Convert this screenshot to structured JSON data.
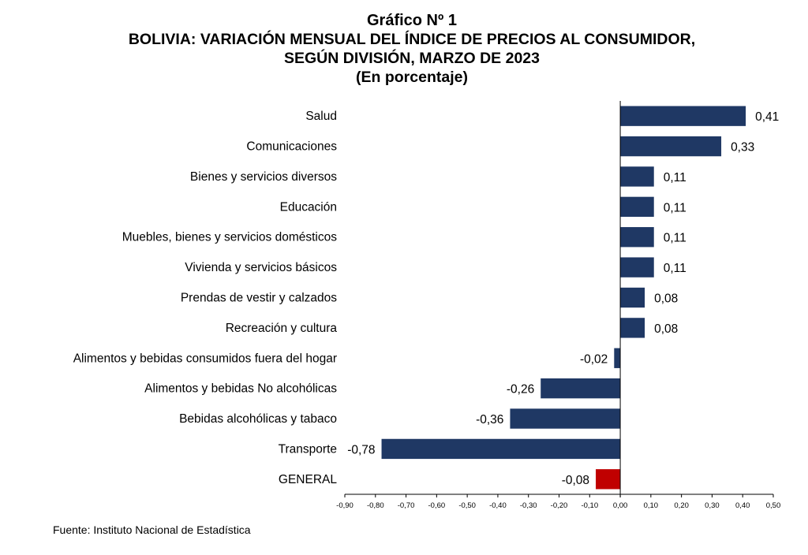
{
  "header": {
    "figure_label": "Gráfico Nº 1",
    "title_line1": "BOLIVIA: VARIACIÓN MENSUAL DEL ÍNDICE DE PRECIOS AL CONSUMIDOR,",
    "title_line2": "SEGÚN DIVISIÓN, MARZO DE 2023",
    "subtitle": "(En porcentaje)"
  },
  "source": "Fuente: Instituto Nacional de Estadística",
  "colors": {
    "bar": "#1f3864",
    "highlight": "#c00000",
    "axis": "#000000"
  },
  "chart_data": {
    "type": "bar",
    "orientation": "horizontal",
    "title": "BOLIVIA: VARIACIÓN MENSUAL DEL ÍNDICE DE PRECIOS AL CONSUMIDOR, SEGÚN DIVISIÓN, MARZO DE 2023",
    "subtitle": "(En porcentaje)",
    "categories": [
      "Salud",
      "Comunicaciones",
      "Bienes y servicios diversos",
      "Educación",
      "Muebles, bienes y servicios domésticos",
      "Vivienda y servicios básicos",
      "Prendas de vestir y calzados",
      "Recreación y cultura",
      "Alimentos y bebidas consumidos fuera del hogar",
      "Alimentos y bebidas No alcohólicas",
      "Bebidas alcohólicas y tabaco",
      "Transporte",
      "GENERAL"
    ],
    "values": [
      0.41,
      0.33,
      0.11,
      0.11,
      0.11,
      0.11,
      0.08,
      0.08,
      -0.02,
      -0.26,
      -0.36,
      -0.78,
      -0.08
    ],
    "value_labels": [
      "0,41",
      "0,33",
      "0,11",
      "0,11",
      "0,11",
      "0,11",
      "0,08",
      "0,08",
      "-0,02",
      "-0,26",
      "-0,36",
      "-0,78",
      "-0,08"
    ],
    "highlight_category": "GENERAL",
    "xlim": [
      -0.9,
      0.5
    ],
    "x_ticks": [
      -0.9,
      -0.8,
      -0.7,
      -0.6,
      -0.5,
      -0.4,
      -0.3,
      -0.2,
      -0.1,
      0.0,
      0.1,
      0.2,
      0.3,
      0.4,
      0.5
    ],
    "x_tick_labels": [
      "-0,90",
      "-0,80",
      "-0,70",
      "-0,60",
      "-0,50",
      "-0,40",
      "-0,30",
      "-0,20",
      "-0,10",
      "0,00",
      "0,10",
      "0,20",
      "0,30",
      "0,40",
      "0,50"
    ],
    "grid": false,
    "legend": "none"
  }
}
